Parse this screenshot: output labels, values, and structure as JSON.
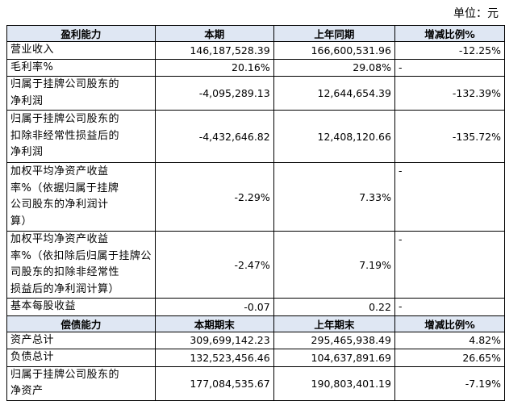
{
  "unit": "单位：元",
  "sections": [
    {
      "header": [
        "盈利能力",
        "本期",
        "上年同期",
        "增减比例%"
      ],
      "rows": [
        {
          "label": [
            "营业收入"
          ],
          "current": "146,187,528.39",
          "previous": "166,600,531.96",
          "change": "-12.25%"
        },
        {
          "label": [
            "毛利率%"
          ],
          "current": "20.16%",
          "previous": "29.08%",
          "change": "-"
        },
        {
          "label": [
            "归属于挂牌公司股东的",
            "净利润"
          ],
          "current": "-4,095,289.13",
          "previous": "12,644,654.39",
          "change": "-132.39%"
        },
        {
          "label": [
            "归属于挂牌公司股东的",
            "扣除非经常性损益后的",
            "净利润"
          ],
          "current": "-4,432,646.82",
          "previous": "12,408,120.66",
          "change": "-135.72%"
        },
        {
          "label": [
            "加权平均净资产收益",
            "率%（依据归属于挂牌",
            "公司股东的净利润计",
            "算）"
          ],
          "current": "-2.29%",
          "previous": "7.33%",
          "change": "-"
        },
        {
          "label": [
            "加权平均净资产收益",
            "率%（依扣除后归属于挂牌公",
            "司股东的扣除非经常性",
            "损益后的净利润计算）"
          ],
          "current": "-2.47%",
          "previous": "7.19%",
          "change": "-"
        },
        {
          "label": [
            "基本每股收益"
          ],
          "current": "-0.07",
          "previous": "0.22",
          "change": "-"
        }
      ]
    },
    {
      "header": [
        "偿债能力",
        "本期期末",
        "上年期末",
        "增减比例%"
      ],
      "rows": [
        {
          "label": [
            "资产总计"
          ],
          "current": "309,699,142.23",
          "previous": "295,465,938.49",
          "change": "4.82%"
        },
        {
          "label": [
            "负债总计"
          ],
          "current": "132,523,456.46",
          "previous": "104,637,891.69",
          "change": "26.65%"
        },
        {
          "label": [
            "归属于挂牌公司股东的",
            "净资产"
          ],
          "current": "177,084,535.67",
          "previous": "190,803,401.19",
          "change": "-7.19%"
        }
      ]
    }
  ]
}
